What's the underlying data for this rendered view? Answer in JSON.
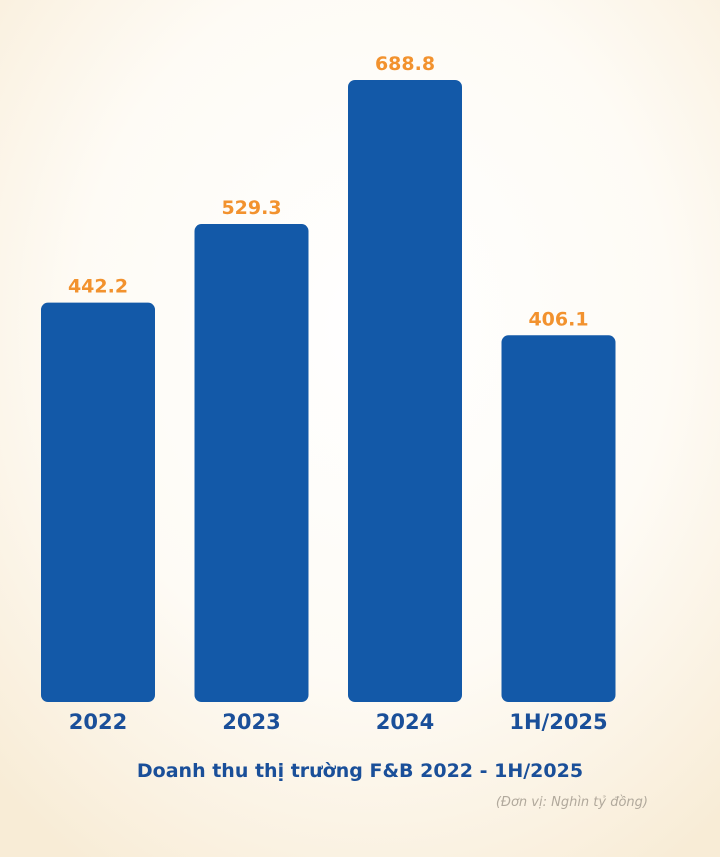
{
  "chart_data": {
    "type": "bar",
    "title": "Doanh thu thị trường F&B 2022 - 1H/2025",
    "unit_note": "(Đơn vị: Nghìn tỷ đồng)",
    "categories": [
      "2022",
      "2023",
      "2024",
      "1H/2025"
    ],
    "values": [
      442.2,
      529.3,
      688.8,
      406.1
    ],
    "value_labels": [
      "442.2",
      "529.3",
      "688.8",
      "406.1"
    ],
    "xlabel": "",
    "ylabel": "",
    "ylim": [
      0,
      688.8
    ],
    "grid": false,
    "legend": "none",
    "colors": {
      "bar": "#1359a8",
      "value_label": "#f2922e",
      "category_label": "#1a4f99",
      "title": "#1a4f99",
      "unit": "#b1a99c",
      "background": "#fbf4e6"
    }
  }
}
